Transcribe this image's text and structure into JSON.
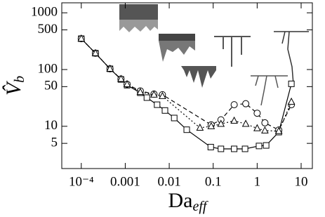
{
  "chart_data": {
    "type": "line",
    "xscale": "log",
    "yscale": "log",
    "xlabel": {
      "text": "Da",
      "sub": "eff"
    },
    "ylabel": {
      "text": "V̂",
      "sub": "b"
    },
    "xlim": [
      3.6e-05,
      18
    ],
    "ylim": [
      1.8,
      1500
    ],
    "xticks": [
      {
        "value": 0.0001,
        "label": "10⁻⁴"
      },
      0.001,
      0.01,
      0.1,
      1,
      10
    ],
    "yticks": [
      5,
      10,
      50,
      100,
      500,
      1000
    ],
    "series": [
      {
        "marker": "square",
        "dash": "solid",
        "color": "#000",
        "x": [
          0.0001,
          0.00021,
          0.00045,
          0.0008,
          0.0011,
          0.0022,
          0.0031,
          0.0053,
          0.008,
          0.013,
          0.025,
          0.088,
          0.15,
          0.3,
          0.53,
          1.1,
          1.6,
          3.1,
          6
        ],
        "values": [
          350,
          194,
          103,
          67,
          53,
          39,
          32,
          24,
          19,
          14,
          8.7,
          4.3,
          4,
          4,
          4,
          4.5,
          4.6,
          7.9,
          56
        ]
      },
      {
        "marker": "circle",
        "dash": "dashed",
        "color": "#000",
        "x": [
          0.0001,
          0.00021,
          0.00045,
          0.0008,
          0.0011,
          0.0022,
          0.0045,
          0.007,
          0.09,
          0.15,
          0.3,
          0.55,
          1.0,
          1.5,
          3.1,
          6
        ],
        "values": [
          350,
          194,
          103,
          68,
          55,
          42,
          37,
          36,
          10.6,
          13,
          24,
          25,
          17,
          11.5,
          8.6,
          24
        ]
      },
      {
        "marker": "triangle",
        "dash": "dotted",
        "color": "#000",
        "x": [
          0.0001,
          0.00021,
          0.00045,
          0.0008,
          0.0011,
          0.0022,
          0.0045,
          0.007,
          0.05,
          0.09,
          0.15,
          0.3,
          0.55,
          1.0,
          1.5,
          3.1,
          6
        ],
        "values": [
          350,
          194,
          103,
          68,
          55,
          40,
          36,
          34,
          9.4,
          10,
          11,
          12.5,
          11,
          9.2,
          8.4,
          8.2,
          27
        ]
      }
    ]
  }
}
